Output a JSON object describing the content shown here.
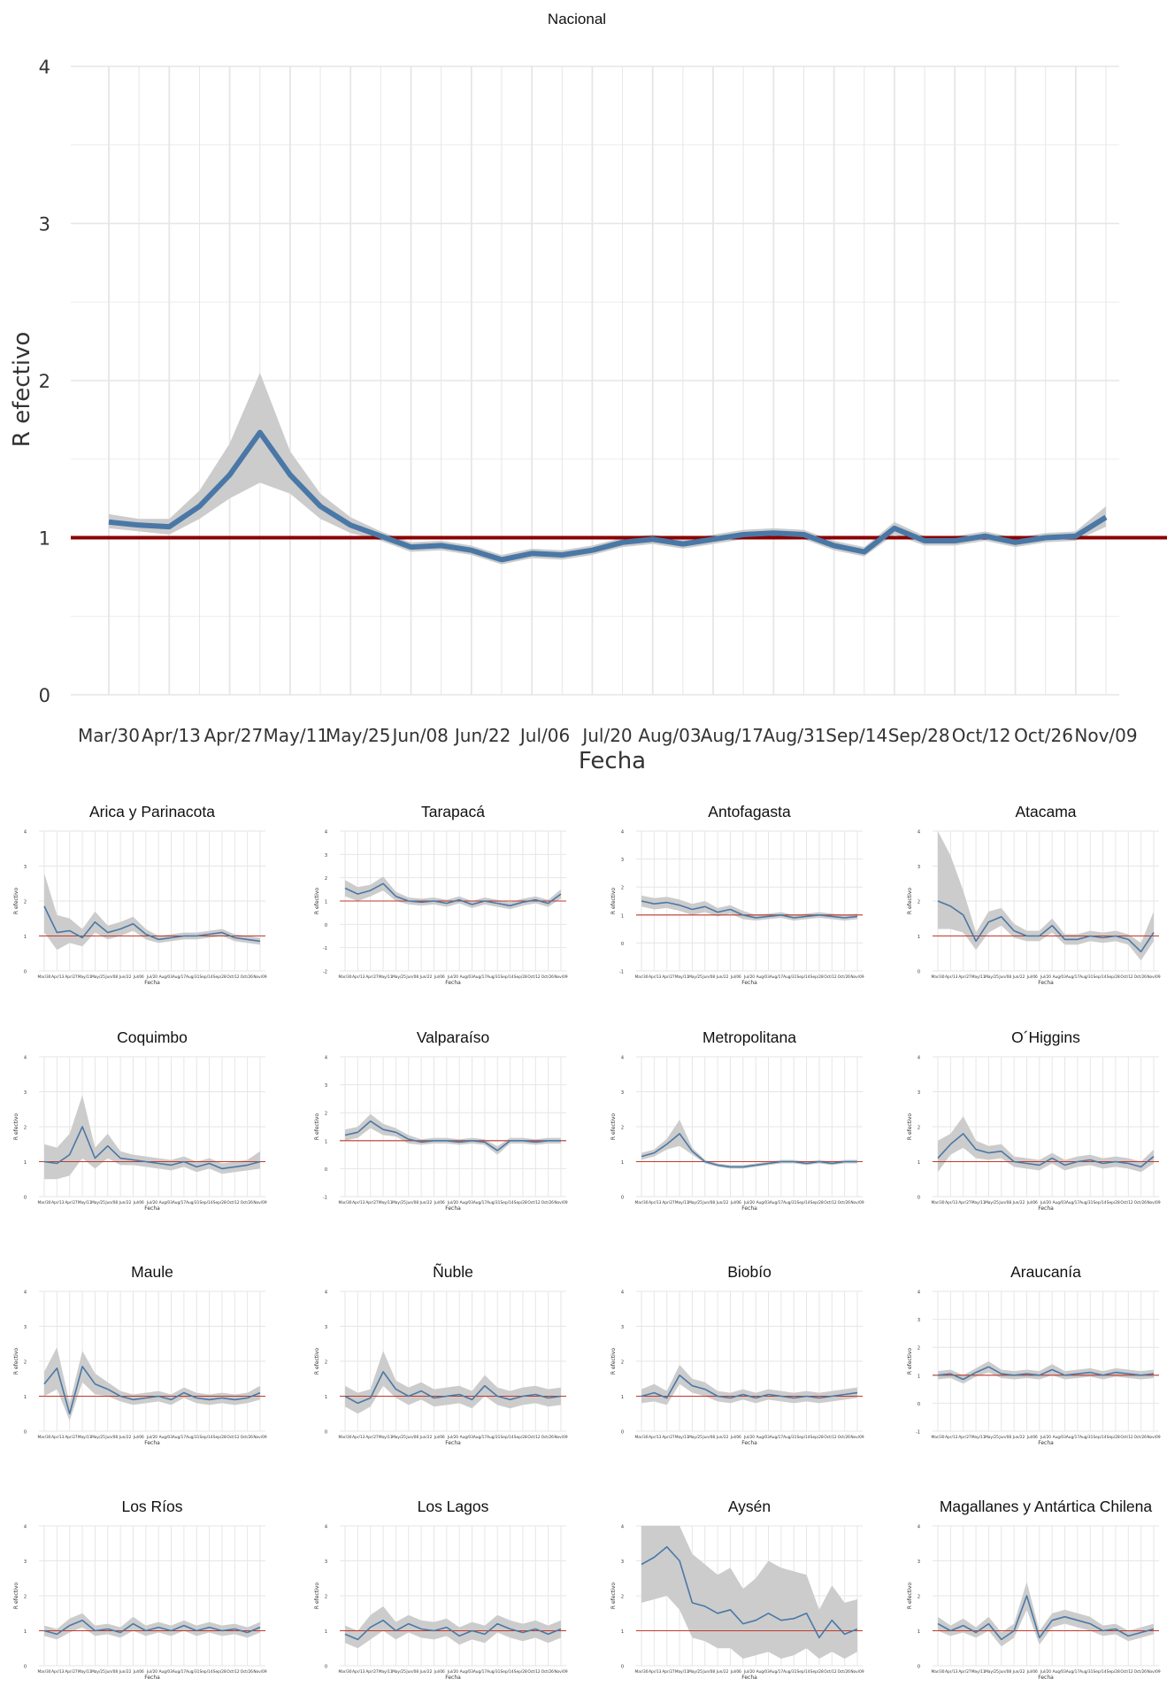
{
  "colors": {
    "line": "#4a78a6",
    "ribbon": "#cccccc",
    "reference": "#8b0000",
    "grid": "#e6e6e6",
    "tick_text": "#4d4d4d"
  },
  "chart_data": [
    {
      "type": "line",
      "title": "Nacional",
      "xlabel": "Fecha",
      "ylabel": "R efectivo",
      "ylim": [
        0,
        4
      ],
      "yticks": [
        0,
        1,
        2,
        3,
        4
      ],
      "xticks": [
        "Mar/30",
        "Apr/13",
        "Apr/27",
        "May/11",
        "May/25",
        "Jun/08",
        "Jun/22",
        "Jul/06",
        "Jul/20",
        "Aug/03",
        "Aug/17",
        "Aug/31",
        "Sep/14",
        "Sep/28",
        "Oct/12",
        "Oct/26",
        "Nov/09"
      ],
      "reference_line": 1,
      "grid": true,
      "x": [
        "Mar/30",
        "Apr/06",
        "Apr/13",
        "Apr/20",
        "Apr/27",
        "May/04",
        "May/11",
        "May/18",
        "May/25",
        "Jun/01",
        "Jun/08",
        "Jun/15",
        "Jun/22",
        "Jun/29",
        "Jul/06",
        "Jul/13",
        "Jul/20",
        "Jul/27",
        "Aug/03",
        "Aug/10",
        "Aug/17",
        "Aug/24",
        "Aug/31",
        "Sep/07",
        "Sep/14",
        "Sep/21",
        "Sep/28",
        "Oct/05",
        "Oct/12",
        "Oct/19",
        "Oct/26",
        "Nov/02",
        "Nov/09",
        "Nov/11"
      ],
      "series": [
        {
          "values": [
            1.1,
            1.08,
            1.07,
            1.2,
            1.4,
            1.67,
            1.4,
            1.2,
            1.08,
            1.01,
            0.94,
            0.95,
            0.92,
            0.86,
            0.9,
            0.89,
            0.92,
            0.97,
            0.99,
            0.96,
            0.99,
            1.02,
            1.03,
            1.02,
            0.95,
            0.91,
            1.06,
            0.98,
            0.98,
            1.01,
            0.97,
            1.0,
            1.01,
            1.13
          ],
          "lower": [
            1.06,
            1.04,
            1.02,
            1.12,
            1.25,
            1.35,
            1.28,
            1.12,
            1.03,
            0.98,
            0.91,
            0.92,
            0.89,
            0.83,
            0.87,
            0.86,
            0.89,
            0.94,
            0.96,
            0.93,
            0.96,
            0.99,
            1.0,
            0.99,
            0.92,
            0.88,
            1.02,
            0.95,
            0.95,
            0.98,
            0.94,
            0.97,
            0.98,
            1.07
          ],
          "upper": [
            1.15,
            1.12,
            1.12,
            1.3,
            1.6,
            2.05,
            1.55,
            1.28,
            1.13,
            1.04,
            0.97,
            0.98,
            0.95,
            0.89,
            0.93,
            0.92,
            0.95,
            1.0,
            1.02,
            0.99,
            1.02,
            1.05,
            1.06,
            1.05,
            0.98,
            0.94,
            1.1,
            1.01,
            1.01,
            1.04,
            1.0,
            1.03,
            1.04,
            1.2
          ]
        }
      ]
    },
    {
      "type": "line",
      "title": "Arica y Parinacota",
      "ylabel": "R efectivo",
      "xlabel": "Fecha",
      "ylim": [
        0,
        4
      ],
      "reference_line": 1,
      "values": [
        1.85,
        1.1,
        1.15,
        0.95,
        1.4,
        1.1,
        1.2,
        1.35,
        1.05,
        0.9,
        0.95,
        1.0,
        1.0,
        1.05,
        1.1,
        0.95,
        0.9,
        0.85
      ],
      "lower": [
        1.1,
        0.6,
        0.8,
        0.7,
        1.1,
        0.9,
        1.0,
        1.15,
        0.9,
        0.8,
        0.85,
        0.9,
        0.9,
        0.95,
        1.0,
        0.85,
        0.8,
        0.75
      ],
      "upper": [
        2.8,
        1.6,
        1.5,
        1.2,
        1.7,
        1.3,
        1.4,
        1.55,
        1.2,
        1.0,
        1.05,
        1.1,
        1.1,
        1.15,
        1.2,
        1.05,
        1.0,
        0.95
      ]
    },
    {
      "type": "line",
      "title": "Tarapacá",
      "ylabel": "R efectivo",
      "xlabel": "Fecha",
      "ylim": [
        -2,
        4
      ],
      "reference_line": 1,
      "values": [
        1.55,
        1.3,
        1.45,
        1.75,
        1.2,
        1.0,
        0.95,
        1.0,
        0.9,
        1.05,
        0.85,
        1.0,
        0.9,
        0.8,
        0.95,
        1.05,
        0.9,
        1.3
      ],
      "lower": [
        1.2,
        1.0,
        1.2,
        1.45,
        1.0,
        0.85,
        0.8,
        0.85,
        0.75,
        0.9,
        0.7,
        0.85,
        0.75,
        0.65,
        0.8,
        0.9,
        0.75,
        1.1
      ],
      "upper": [
        1.9,
        1.6,
        1.7,
        2.05,
        1.4,
        1.15,
        1.1,
        1.15,
        1.05,
        1.2,
        1.0,
        1.15,
        1.05,
        0.95,
        1.1,
        1.2,
        1.05,
        1.5
      ]
    },
    {
      "type": "line",
      "title": "Antofagasta",
      "ylabel": "R efectivo",
      "xlabel": "Fecha",
      "ylim": [
        -1,
        4
      ],
      "reference_line": 1,
      "values": [
        1.5,
        1.4,
        1.45,
        1.35,
        1.2,
        1.3,
        1.1,
        1.2,
        1.0,
        0.9,
        0.95,
        1.0,
        0.9,
        0.95,
        1.0,
        0.95,
        0.9,
        0.95
      ],
      "lower": [
        1.3,
        1.2,
        1.25,
        1.15,
        1.0,
        1.1,
        0.95,
        1.05,
        0.85,
        0.8,
        0.85,
        0.9,
        0.8,
        0.85,
        0.9,
        0.85,
        0.8,
        0.85
      ],
      "upper": [
        1.7,
        1.6,
        1.65,
        1.55,
        1.4,
        1.5,
        1.25,
        1.35,
        1.15,
        1.0,
        1.05,
        1.1,
        1.0,
        1.05,
        1.1,
        1.05,
        1.0,
        1.05
      ]
    },
    {
      "type": "line",
      "title": "Atacama",
      "ylabel": "R efectivo",
      "xlabel": "Fecha",
      "ylim": [
        0,
        4
      ],
      "reference_line": 1,
      "values": [
        2.0,
        1.85,
        1.6,
        0.85,
        1.4,
        1.55,
        1.15,
        1.0,
        1.0,
        1.3,
        0.9,
        0.9,
        1.0,
        0.95,
        1.0,
        0.9,
        0.55,
        1.1
      ],
      "lower": [
        1.2,
        1.2,
        1.1,
        0.6,
        1.1,
        1.3,
        0.95,
        0.85,
        0.85,
        1.1,
        0.75,
        0.75,
        0.85,
        0.8,
        0.85,
        0.75,
        0.3,
        0.85
      ],
      "upper": [
        4.0,
        3.3,
        2.3,
        1.1,
        1.7,
        1.8,
        1.35,
        1.15,
        1.15,
        1.5,
        1.05,
        1.05,
        1.15,
        1.1,
        1.15,
        1.05,
        0.8,
        1.7
      ]
    },
    {
      "type": "line",
      "title": "Coquimbo",
      "ylabel": "R efectivo",
      "xlabel": "Fecha",
      "ylim": [
        0,
        4
      ],
      "reference_line": 1,
      "values": [
        1.0,
        0.95,
        1.2,
        2.0,
        1.1,
        1.45,
        1.1,
        1.05,
        1.0,
        0.95,
        0.9,
        1.0,
        0.85,
        0.95,
        0.8,
        0.85,
        0.9,
        1.0
      ],
      "lower": [
        0.5,
        0.5,
        0.6,
        1.1,
        0.8,
        1.1,
        0.9,
        0.9,
        0.85,
        0.8,
        0.75,
        0.85,
        0.7,
        0.8,
        0.65,
        0.7,
        0.75,
        0.8
      ],
      "upper": [
        1.5,
        1.4,
        1.8,
        2.9,
        1.4,
        1.8,
        1.3,
        1.2,
        1.15,
        1.1,
        1.05,
        1.15,
        1.0,
        1.1,
        0.95,
        1.0,
        1.05,
        1.3
      ]
    },
    {
      "type": "line",
      "title": "Valparaíso",
      "ylabel": "R efectivo",
      "xlabel": "Fecha",
      "ylim": [
        -1,
        4
      ],
      "reference_line": 1,
      "values": [
        1.2,
        1.3,
        1.7,
        1.4,
        1.3,
        1.05,
        0.95,
        1.0,
        1.0,
        0.95,
        1.0,
        0.95,
        0.65,
        1.0,
        1.0,
        0.95,
        1.0,
        1.0
      ],
      "lower": [
        1.0,
        1.1,
        1.45,
        1.2,
        1.15,
        0.9,
        0.85,
        0.9,
        0.9,
        0.85,
        0.9,
        0.85,
        0.5,
        0.9,
        0.9,
        0.85,
        0.9,
        0.9
      ],
      "upper": [
        1.4,
        1.5,
        1.95,
        1.6,
        1.45,
        1.2,
        1.05,
        1.1,
        1.1,
        1.05,
        1.1,
        1.05,
        0.8,
        1.1,
        1.1,
        1.05,
        1.1,
        1.1
      ]
    },
    {
      "type": "line",
      "title": "Metropolitana",
      "ylabel": "R efectivo",
      "xlabel": "Fecha",
      "ylim": [
        0,
        4
      ],
      "reference_line": 1,
      "values": [
        1.15,
        1.25,
        1.5,
        1.8,
        1.3,
        1.0,
        0.9,
        0.85,
        0.85,
        0.9,
        0.95,
        1.0,
        1.0,
        0.95,
        1.0,
        0.95,
        1.0,
        1.0
      ],
      "lower": [
        1.05,
        1.15,
        1.35,
        1.45,
        1.2,
        0.95,
        0.85,
        0.8,
        0.8,
        0.85,
        0.9,
        0.95,
        0.95,
        0.9,
        0.95,
        0.9,
        0.95,
        0.95
      ],
      "upper": [
        1.25,
        1.35,
        1.65,
        2.2,
        1.4,
        1.05,
        0.95,
        0.9,
        0.9,
        0.95,
        1.0,
        1.05,
        1.05,
        1.0,
        1.05,
        1.0,
        1.05,
        1.05
      ]
    },
    {
      "type": "line",
      "title": "O´Higgins",
      "ylabel": "R efectivo",
      "xlabel": "Fecha",
      "ylim": [
        0,
        4
      ],
      "reference_line": 1,
      "values": [
        1.1,
        1.5,
        1.8,
        1.35,
        1.25,
        1.3,
        1.0,
        0.95,
        0.9,
        1.1,
        0.9,
        1.0,
        1.05,
        0.95,
        1.0,
        0.95,
        0.85,
        1.15
      ],
      "lower": [
        0.7,
        1.2,
        1.4,
        1.1,
        1.05,
        1.1,
        0.85,
        0.8,
        0.75,
        0.95,
        0.75,
        0.85,
        0.9,
        0.8,
        0.85,
        0.8,
        0.7,
        0.95
      ],
      "upper": [
        1.6,
        1.8,
        2.3,
        1.6,
        1.45,
        1.5,
        1.15,
        1.1,
        1.05,
        1.25,
        1.05,
        1.15,
        1.2,
        1.1,
        1.15,
        1.1,
        1.0,
        1.35
      ]
    },
    {
      "type": "line",
      "title": "Maule",
      "ylabel": "R efectivo",
      "xlabel": "Fecha",
      "ylim": [
        0,
        4
      ],
      "reference_line": 1,
      "values": [
        1.35,
        1.8,
        0.5,
        1.85,
        1.35,
        1.2,
        1.0,
        0.9,
        0.95,
        1.0,
        0.9,
        1.1,
        0.95,
        0.9,
        0.95,
        0.9,
        0.95,
        1.1
      ],
      "lower": [
        1.0,
        1.2,
        0.3,
        1.4,
        1.05,
        1.0,
        0.85,
        0.75,
        0.8,
        0.85,
        0.75,
        0.95,
        0.8,
        0.75,
        0.8,
        0.75,
        0.8,
        0.9
      ],
      "upper": [
        1.7,
        2.4,
        0.8,
        2.3,
        1.65,
        1.4,
        1.15,
        1.05,
        1.1,
        1.15,
        1.05,
        1.25,
        1.1,
        1.05,
        1.1,
        1.05,
        1.1,
        1.3
      ]
    },
    {
      "type": "line",
      "title": "Ñuble",
      "ylabel": "R efectivo",
      "xlabel": "Fecha",
      "ylim": [
        0,
        4
      ],
      "reference_line": 1,
      "values": [
        1.0,
        0.8,
        0.95,
        1.7,
        1.2,
        1.0,
        1.15,
        0.95,
        1.0,
        1.05,
        0.9,
        1.3,
        1.0,
        0.9,
        1.0,
        1.05,
        0.95,
        1.0
      ],
      "lower": [
        0.7,
        0.5,
        0.7,
        1.3,
        0.95,
        0.75,
        0.9,
        0.7,
        0.75,
        0.8,
        0.65,
        1.0,
        0.75,
        0.65,
        0.75,
        0.8,
        0.7,
        0.75
      ],
      "upper": [
        1.3,
        1.1,
        1.2,
        2.3,
        1.45,
        1.25,
        1.4,
        1.2,
        1.25,
        1.3,
        1.15,
        1.6,
        1.25,
        1.15,
        1.25,
        1.3,
        1.2,
        1.25
      ]
    },
    {
      "type": "line",
      "title": "Biobío",
      "ylabel": "R efectivo",
      "xlabel": "Fecha",
      "ylim": [
        0,
        4
      ],
      "reference_line": 1,
      "values": [
        1.0,
        1.1,
        0.95,
        1.6,
        1.3,
        1.2,
        1.0,
        0.95,
        1.05,
        0.95,
        1.05,
        1.0,
        0.95,
        1.0,
        0.95,
        1.0,
        1.05,
        1.1
      ],
      "lower": [
        0.8,
        0.85,
        0.75,
        1.35,
        1.1,
        1.0,
        0.85,
        0.8,
        0.9,
        0.8,
        0.9,
        0.85,
        0.8,
        0.85,
        0.8,
        0.85,
        0.9,
        0.95
      ],
      "upper": [
        1.2,
        1.35,
        1.15,
        1.9,
        1.5,
        1.4,
        1.15,
        1.1,
        1.2,
        1.1,
        1.2,
        1.15,
        1.1,
        1.15,
        1.1,
        1.15,
        1.2,
        1.25
      ]
    },
    {
      "type": "line",
      "title": "Araucanía",
      "ylabel": "R efectivo",
      "xlabel": "Fecha",
      "ylim": [
        -1,
        4
      ],
      "reference_line": 1,
      "values": [
        1.0,
        1.05,
        0.85,
        1.1,
        1.3,
        1.05,
        1.0,
        1.05,
        1.0,
        1.2,
        1.0,
        1.05,
        1.1,
        1.0,
        1.1,
        1.05,
        1.0,
        1.05
      ],
      "lower": [
        0.85,
        0.9,
        0.7,
        0.95,
        1.1,
        0.9,
        0.85,
        0.9,
        0.85,
        1.0,
        0.85,
        0.9,
        0.95,
        0.85,
        0.95,
        0.9,
        0.85,
        0.9
      ],
      "upper": [
        1.15,
        1.2,
        1.0,
        1.25,
        1.5,
        1.2,
        1.15,
        1.2,
        1.15,
        1.4,
        1.15,
        1.2,
        1.25,
        1.15,
        1.25,
        1.2,
        1.15,
        1.2
      ]
    },
    {
      "type": "line",
      "title": "Los Ríos",
      "ylabel": "R efectivo",
      "xlabel": "Fecha",
      "ylim": [
        0,
        4
      ],
      "reference_line": 1,
      "values": [
        1.0,
        0.9,
        1.15,
        1.3,
        1.0,
        1.05,
        0.95,
        1.2,
        1.0,
        1.1,
        1.0,
        1.15,
        1.0,
        1.1,
        1.0,
        1.05,
        0.95,
        1.1
      ],
      "lower": [
        0.85,
        0.75,
        0.95,
        1.1,
        0.85,
        0.9,
        0.8,
        1.0,
        0.85,
        0.95,
        0.85,
        1.0,
        0.85,
        0.95,
        0.85,
        0.9,
        0.8,
        0.95
      ],
      "upper": [
        1.15,
        1.05,
        1.35,
        1.5,
        1.15,
        1.2,
        1.1,
        1.4,
        1.15,
        1.25,
        1.15,
        1.3,
        1.15,
        1.25,
        1.15,
        1.2,
        1.1,
        1.25
      ]
    },
    {
      "type": "line",
      "title": "Los Lagos",
      "ylabel": "R efectivo",
      "xlabel": "Fecha",
      "ylim": [
        0,
        4
      ],
      "reference_line": 1,
      "values": [
        0.9,
        0.75,
        1.1,
        1.3,
        1.0,
        1.2,
        1.05,
        1.0,
        1.1,
        0.85,
        1.0,
        0.9,
        1.2,
        1.05,
        0.95,
        1.05,
        0.9,
        1.05
      ],
      "lower": [
        0.65,
        0.5,
        0.75,
        1.0,
        0.75,
        0.95,
        0.8,
        0.75,
        0.85,
        0.6,
        0.75,
        0.65,
        0.95,
        0.8,
        0.7,
        0.8,
        0.65,
        0.8
      ],
      "upper": [
        1.15,
        1.0,
        1.45,
        1.7,
        1.25,
        1.45,
        1.3,
        1.25,
        1.35,
        1.1,
        1.25,
        1.15,
        1.45,
        1.3,
        1.2,
        1.3,
        1.15,
        1.3
      ]
    },
    {
      "type": "line",
      "title": "Aysén",
      "ylabel": "R efectivo",
      "xlabel": "Fecha",
      "ylim": [
        0,
        4
      ],
      "reference_line": 1,
      "values": [
        2.9,
        3.1,
        3.4,
        3.0,
        1.8,
        1.7,
        1.5,
        1.6,
        1.2,
        1.3,
        1.5,
        1.3,
        1.35,
        1.5,
        0.8,
        1.3,
        0.9,
        1.05
      ],
      "lower": [
        1.8,
        1.9,
        2.0,
        1.6,
        0.8,
        0.7,
        0.5,
        0.5,
        0.2,
        0.3,
        0.4,
        0.2,
        0.3,
        0.5,
        0.2,
        0.4,
        0.2,
        0.4
      ],
      "upper": [
        4.0,
        4.0,
        4.0,
        4.0,
        3.2,
        2.9,
        2.6,
        2.8,
        2.2,
        2.5,
        3.0,
        2.8,
        2.7,
        2.6,
        1.6,
        2.3,
        1.8,
        1.9
      ]
    },
    {
      "type": "line",
      "title": "Magallanes y Antártica Chilena",
      "ylabel": "R efectivo",
      "xlabel": "Fecha",
      "ylim": [
        0,
        4
      ],
      "reference_line": 1,
      "values": [
        1.2,
        1.0,
        1.15,
        0.95,
        1.2,
        0.75,
        1.0,
        2.0,
        0.8,
        1.3,
        1.4,
        1.3,
        1.2,
        1.0,
        1.05,
        0.85,
        0.95,
        1.05
      ],
      "lower": [
        1.0,
        0.85,
        0.95,
        0.8,
        1.0,
        0.55,
        0.8,
        1.6,
        0.6,
        1.1,
        1.2,
        1.1,
        1.0,
        0.85,
        0.9,
        0.7,
        0.8,
        0.9
      ],
      "upper": [
        1.4,
        1.15,
        1.35,
        1.1,
        1.4,
        0.95,
        1.2,
        2.4,
        1.0,
        1.5,
        1.6,
        1.5,
        1.4,
        1.15,
        1.2,
        1.0,
        1.1,
        1.2
      ]
    }
  ]
}
